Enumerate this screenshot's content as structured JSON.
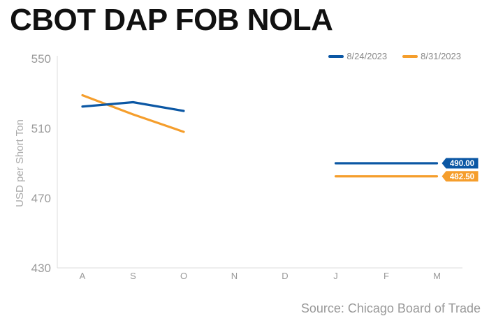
{
  "chart_data": {
    "type": "line",
    "title": "CBOT DAP FOB NOLA",
    "ylabel": "USD per Short Ton",
    "ylim": [
      430,
      550
    ],
    "yticks": [
      550,
      510,
      470,
      430
    ],
    "categories": [
      "A",
      "S",
      "O",
      "N",
      "D",
      "J",
      "F",
      "M"
    ],
    "series": [
      {
        "name": "8/24/2023",
        "color": "#0b57a4",
        "values": [
          522.5,
          525,
          520,
          null,
          null,
          490,
          490,
          490
        ],
        "end_label": "490.00"
      },
      {
        "name": "8/31/2023",
        "color": "#f59e2c",
        "values": [
          529,
          518,
          508,
          null,
          null,
          482.5,
          482.5,
          482.5
        ],
        "end_label": "482.50"
      }
    ],
    "legend_position": "top-right",
    "grid": false,
    "source": "Source: Chicago Board of Trade"
  }
}
